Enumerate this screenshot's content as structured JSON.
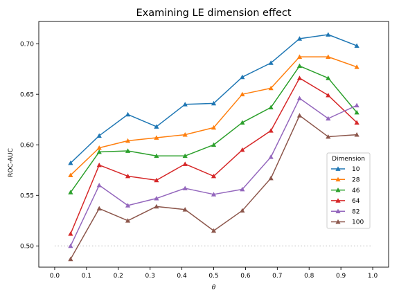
{
  "chart_data": {
    "type": "line",
    "title": "Examining LE dimension effect",
    "xlabel": "θ",
    "ylabel": "ROC-AUC",
    "xlim": [
      -0.05,
      1.05
    ],
    "ylim": [
      0.479,
      0.722
    ],
    "xticks": [
      0.0,
      0.1,
      0.2,
      0.3,
      0.4,
      0.5,
      0.6,
      0.7,
      0.8,
      0.9,
      1.0
    ],
    "xtick_labels": [
      "0.0",
      "0.1",
      "0.2",
      "0.3",
      "0.4",
      "0.5",
      "0.6",
      "0.7",
      "0.8",
      "0.9",
      "1.0"
    ],
    "yticks": [
      0.5,
      0.55,
      0.6,
      0.65,
      0.7
    ],
    "ytick_labels": [
      "0.50",
      "0.55",
      "0.60",
      "0.65",
      "0.70"
    ],
    "x": [
      0.05,
      0.14,
      0.23,
      0.32,
      0.41,
      0.5,
      0.59,
      0.68,
      0.77,
      0.86,
      0.95
    ],
    "legend_title": "Dimension",
    "legend_position": "center-right",
    "reference_line": {
      "y": 0.5,
      "style": "dotted",
      "color": "#c0c0c0"
    },
    "series": [
      {
        "name": "10",
        "color": "#1f77b4",
        "values": [
          0.582,
          0.609,
          0.63,
          0.618,
          0.64,
          0.641,
          0.667,
          0.681,
          0.705,
          0.709,
          0.698
        ]
      },
      {
        "name": "28",
        "color": "#ff7f0e",
        "values": [
          0.57,
          0.597,
          0.604,
          0.607,
          0.61,
          0.617,
          0.65,
          0.656,
          0.687,
          0.687,
          0.677
        ]
      },
      {
        "name": "46",
        "color": "#2ca02c",
        "values": [
          0.553,
          0.593,
          0.594,
          0.589,
          0.589,
          0.6,
          0.622,
          0.637,
          0.678,
          0.666,
          0.632
        ]
      },
      {
        "name": "64",
        "color": "#d62728",
        "values": [
          0.512,
          0.58,
          0.569,
          0.565,
          0.581,
          0.569,
          0.595,
          0.614,
          0.666,
          0.649,
          0.622
        ]
      },
      {
        "name": "82",
        "color": "#9467bd",
        "values": [
          0.5,
          0.56,
          0.54,
          0.547,
          0.557,
          0.551,
          0.556,
          0.588,
          0.646,
          0.626,
          0.639
        ]
      },
      {
        "name": "100",
        "color": "#8c564b",
        "values": [
          0.487,
          0.537,
          0.525,
          0.539,
          0.536,
          0.515,
          0.535,
          0.567,
          0.629,
          0.608,
          0.61
        ]
      }
    ]
  }
}
